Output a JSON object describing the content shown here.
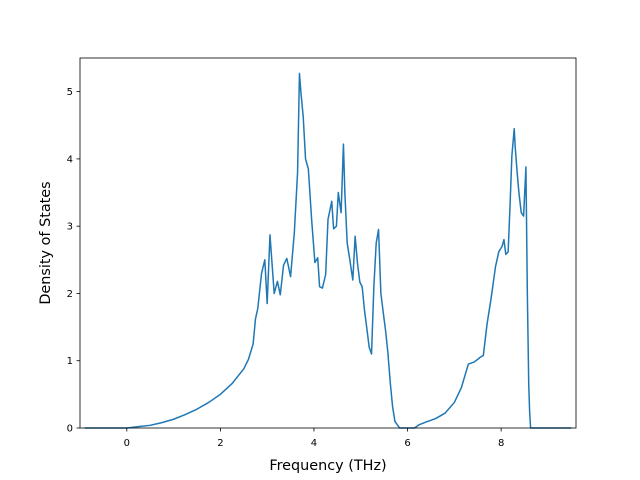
{
  "chart_data": {
    "type": "line",
    "title": "",
    "xlabel": "Frequency (THz)",
    "ylabel": "Density of States",
    "xlim": [
      -1.0,
      9.6
    ],
    "ylim": [
      0,
      5.5
    ],
    "xticks": [
      0,
      2,
      4,
      6,
      8
    ],
    "yticks": [
      0,
      1,
      2,
      3,
      4,
      5
    ],
    "grid": false,
    "series": [
      {
        "color": "#1f77b4",
        "x": [
          -0.9,
          -0.5,
          0.0,
          0.25,
          0.5,
          0.75,
          1.0,
          1.25,
          1.5,
          1.75,
          2.0,
          2.25,
          2.5,
          2.6,
          2.7,
          2.75,
          2.8,
          2.88,
          2.95,
          3.0,
          3.06,
          3.15,
          3.22,
          3.28,
          3.35,
          3.42,
          3.5,
          3.58,
          3.65,
          3.69,
          3.72,
          3.77,
          3.82,
          3.88,
          3.95,
          4.02,
          4.08,
          4.12,
          4.18,
          4.25,
          4.3,
          4.38,
          4.42,
          4.48,
          4.52,
          4.58,
          4.63,
          4.66,
          4.71,
          4.76,
          4.83,
          4.88,
          4.93,
          4.98,
          5.03,
          5.08,
          5.13,
          5.18,
          5.23,
          5.28,
          5.33,
          5.38,
          5.43,
          5.48,
          5.53,
          5.58,
          5.63,
          5.68,
          5.73,
          5.78,
          5.83,
          5.88,
          5.93,
          5.98,
          6.05,
          6.15,
          6.25,
          6.4,
          6.6,
          6.8,
          7.0,
          7.15,
          7.3,
          7.42,
          7.5,
          7.55,
          7.62,
          7.7,
          7.78,
          7.82,
          7.88,
          7.95,
          8.02,
          8.06,
          8.1,
          8.15,
          8.19,
          8.23,
          8.28,
          8.3,
          8.34,
          8.38,
          8.43,
          8.48,
          8.53,
          8.56,
          8.59,
          8.61,
          8.63,
          8.66,
          8.7,
          8.8,
          9.0,
          9.5
        ],
        "y": [
          0.0,
          0.0,
          0.0,
          0.02,
          0.04,
          0.08,
          0.13,
          0.2,
          0.28,
          0.38,
          0.5,
          0.66,
          0.88,
          1.02,
          1.25,
          1.62,
          1.78,
          2.3,
          2.5,
          1.85,
          2.87,
          2.0,
          2.18,
          1.98,
          2.42,
          2.52,
          2.25,
          2.9,
          3.8,
          5.27,
          5.0,
          4.63,
          4.0,
          3.85,
          3.1,
          2.46,
          2.53,
          2.1,
          2.08,
          2.28,
          3.1,
          3.37,
          2.96,
          3.0,
          3.5,
          3.2,
          4.22,
          3.5,
          2.75,
          2.53,
          2.2,
          2.85,
          2.45,
          2.17,
          2.1,
          1.75,
          1.48,
          1.2,
          1.1,
          2.1,
          2.75,
          2.95,
          2.0,
          1.72,
          1.45,
          1.12,
          0.68,
          0.32,
          0.1,
          0.05,
          0.0,
          0.0,
          0.0,
          0.0,
          0.0,
          0.0,
          0.05,
          0.09,
          0.14,
          0.22,
          0.38,
          0.6,
          0.95,
          0.98,
          1.02,
          1.05,
          1.08,
          1.55,
          1.9,
          2.1,
          2.4,
          2.62,
          2.7,
          2.8,
          2.58,
          2.62,
          3.3,
          4.05,
          4.45,
          4.18,
          3.82,
          3.5,
          3.2,
          3.15,
          3.88,
          2.0,
          0.65,
          0.22,
          0.0,
          0.0,
          0.0,
          0.0,
          0.0,
          0.0
        ]
      }
    ]
  }
}
